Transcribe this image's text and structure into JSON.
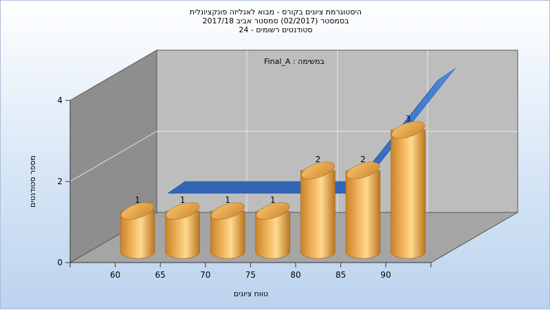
{
  "title": {
    "line1": "היסטוגרמת ציונים בקורס - מבוא לאנליזה פונקציונלית",
    "line2": "בסמסטר  (02/2017)  סמסטר אביב 2017/18",
    "line3": "סטודנטים רשומים - 24"
  },
  "chart_data": {
    "type": "bar",
    "title": "היסטוגרמת ציונים בקורס - מבוא לאנליזה פונקציונלית",
    "subtitle": "Final_A : במשימה",
    "xlabel": "טווח ציונים",
    "ylabel": "מספר סטודנטים",
    "categories": [
      "60",
      "65",
      "70",
      "75",
      "80",
      "85",
      "90"
    ],
    "values": [
      1,
      1,
      1,
      1,
      2,
      2,
      3
    ],
    "line_series_values": [
      1,
      1,
      1,
      1,
      1,
      2.5,
      4
    ],
    "ylim": [
      0,
      4
    ],
    "yticks": [
      0,
      2,
      4
    ],
    "grid": true,
    "bar_color": "#e0a24a",
    "line_color": "#3f76c8"
  }
}
